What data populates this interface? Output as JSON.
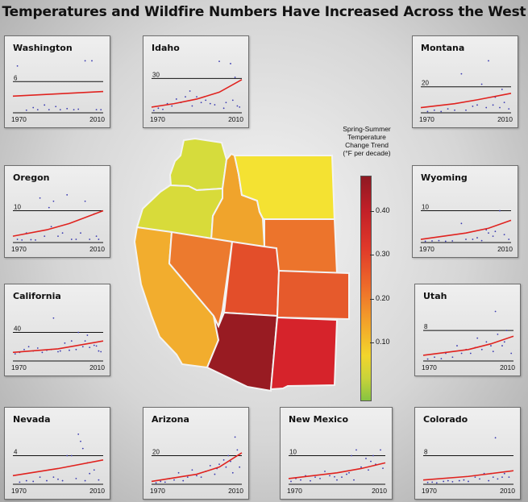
{
  "title": "Temperatures and Wildfire Numbers Have Increased Across the West",
  "legend": {
    "title_lines": [
      "Spring-Summer",
      "Temperature",
      "Change Trend",
      "(°F per decade)"
    ],
    "ticks": [
      "0.40",
      "0.30",
      "0.20",
      "0.10"
    ],
    "tick_values": [
      0.4,
      0.3,
      0.2,
      0.1
    ],
    "range": [
      -0.03,
      0.48
    ]
  },
  "map_colors": {
    "washington": "#d6dc3c",
    "oregon": "#d8db3a",
    "idaho": "#f0a42c",
    "montana": "#f4e232",
    "wyoming": "#ec742c",
    "california": "#f2ad2e",
    "nevada": "#ec7a2e",
    "utah": "#e34e2a",
    "colorado": "#e65a2c",
    "arizona": "#981b22",
    "new_mexico": "#d6232b"
  },
  "chart_data": [
    {
      "type": "scatter",
      "title": "Washington",
      "xlabel_ticks": [
        "1970",
        "2010"
      ],
      "ref_label": "6",
      "ref_value": 6,
      "ylim": [
        0,
        11
      ],
      "x_range": [
        1970,
        2010
      ],
      "points": [
        [
          1972,
          9
        ],
        [
          1976,
          0.5
        ],
        [
          1979,
          1
        ],
        [
          1981,
          0.6
        ],
        [
          1984,
          1.5
        ],
        [
          1986,
          0.6
        ],
        [
          1989,
          1.2
        ],
        [
          1991,
          0.6
        ],
        [
          1994,
          0.8
        ],
        [
          1997,
          0.6
        ],
        [
          1999,
          0.7
        ],
        [
          2002,
          10
        ],
        [
          2005,
          10
        ],
        [
          2007,
          0.6
        ],
        [
          2009,
          0.6
        ]
      ],
      "trend": [
        [
          1970,
          3.2
        ],
        [
          2010,
          4.1
        ]
      ]
    },
    {
      "type": "scatter",
      "title": "Idaho",
      "xlabel_ticks": [
        "1970",
        "2010"
      ],
      "ref_label": "30",
      "ref_value": 30,
      "ylim": [
        0,
        50
      ],
      "x_range": [
        1970,
        2010
      ],
      "points": [
        [
          1971,
          2
        ],
        [
          1973,
          4
        ],
        [
          1975,
          3
        ],
        [
          1977,
          8
        ],
        [
          1979,
          6
        ],
        [
          1981,
          12
        ],
        [
          1983,
          9
        ],
        [
          1985,
          14
        ],
        [
          1987,
          19
        ],
        [
          1988,
          6
        ],
        [
          1990,
          14
        ],
        [
          1992,
          9
        ],
        [
          1994,
          11
        ],
        [
          1996,
          8
        ],
        [
          1998,
          7
        ],
        [
          2000,
          45
        ],
        [
          2002,
          4
        ],
        [
          2003,
          9
        ],
        [
          2005,
          43
        ],
        [
          2006,
          11
        ],
        [
          2007,
          31
        ],
        [
          2008,
          6
        ],
        [
          2009,
          5
        ]
      ],
      "trend": [
        [
          1970,
          5
        ],
        [
          1980,
          8
        ],
        [
          1990,
          12
        ],
        [
          2000,
          18
        ],
        [
          2010,
          29
        ]
      ]
    },
    {
      "type": "scatter",
      "title": "Montana",
      "xlabel_ticks": [
        "1970",
        "2010"
      ],
      "ref_label": "20",
      "ref_value": 20,
      "ylim": [
        0,
        44
      ],
      "x_range": [
        1970,
        2010
      ],
      "points": [
        [
          1973,
          1
        ],
        [
          1976,
          2
        ],
        [
          1979,
          1
        ],
        [
          1982,
          3
        ],
        [
          1985,
          2
        ],
        [
          1988,
          30
        ],
        [
          1990,
          2
        ],
        [
          1993,
          5
        ],
        [
          1995,
          6
        ],
        [
          1997,
          22
        ],
        [
          1999,
          4
        ],
        [
          2000,
          40
        ],
        [
          2002,
          6
        ],
        [
          2003,
          12
        ],
        [
          2005,
          4
        ],
        [
          2006,
          18
        ],
        [
          2007,
          8
        ],
        [
          2009,
          3
        ]
      ],
      "trend": [
        [
          1970,
          4
        ],
        [
          1985,
          7
        ],
        [
          1995,
          10
        ],
        [
          2010,
          15
        ]
      ]
    },
    {
      "type": "scatter",
      "title": "Oregon",
      "xlabel_ticks": [
        "1970",
        "2010"
      ],
      "ref_label": "10",
      "ref_value": 10,
      "ylim": [
        0,
        18
      ],
      "x_range": [
        1970,
        2010
      ],
      "points": [
        [
          1972,
          1
        ],
        [
          1974,
          0.8
        ],
        [
          1976,
          3
        ],
        [
          1978,
          0.9
        ],
        [
          1980,
          0.8
        ],
        [
          1982,
          14
        ],
        [
          1984,
          2
        ],
        [
          1986,
          11
        ],
        [
          1987,
          5
        ],
        [
          1988,
          13
        ],
        [
          1990,
          2
        ],
        [
          1992,
          3
        ],
        [
          1994,
          15
        ],
        [
          1996,
          1
        ],
        [
          1998,
          1
        ],
        [
          2000,
          3
        ],
        [
          2002,
          13
        ],
        [
          2004,
          1
        ],
        [
          2006,
          9
        ],
        [
          2007,
          2
        ],
        [
          2008,
          1
        ]
      ],
      "trend": [
        [
          1970,
          2
        ],
        [
          1985,
          4
        ],
        [
          1995,
          6
        ],
        [
          2010,
          10
        ]
      ]
    },
    {
      "type": "scatter",
      "title": "Wyoming",
      "xlabel_ticks": [
        "1970",
        "2010"
      ],
      "ref_label": "10",
      "ref_value": 10,
      "ylim": [
        0,
        18
      ],
      "x_range": [
        1970,
        2010
      ],
      "points": [
        [
          1972,
          0.4
        ],
        [
          1975,
          0.5
        ],
        [
          1978,
          0.6
        ],
        [
          1981,
          0.4
        ],
        [
          1984,
          0.5
        ],
        [
          1988,
          6
        ],
        [
          1990,
          1
        ],
        [
          1993,
          1
        ],
        [
          1995,
          1.5
        ],
        [
          1997,
          0.6
        ],
        [
          1999,
          4
        ],
        [
          2000,
          3
        ],
        [
          2002,
          2
        ],
        [
          2003,
          3.5
        ],
        [
          2005,
          10
        ],
        [
          2007,
          2.5
        ],
        [
          2009,
          1
        ]
      ],
      "trend": [
        [
          1970,
          1
        ],
        [
          1990,
          3
        ],
        [
          2000,
          4.5
        ],
        [
          2010,
          7
        ]
      ]
    },
    {
      "type": "scatter",
      "title": "California",
      "xlabel_ticks": [
        "1970",
        "2010"
      ],
      "ref_label": "40",
      "ref_value": 40,
      "ylim": [
        0,
        80
      ],
      "x_range": [
        1970,
        2010
      ],
      "points": [
        [
          1971,
          10
        ],
        [
          1973,
          12
        ],
        [
          1975,
          16
        ],
        [
          1977,
          20
        ],
        [
          1979,
          14
        ],
        [
          1981,
          18
        ],
        [
          1983,
          12
        ],
        [
          1985,
          15
        ],
        [
          1987,
          16
        ],
        [
          1988,
          60
        ],
        [
          1990,
          13
        ],
        [
          1991,
          14
        ],
        [
          1993,
          25
        ],
        [
          1995,
          15
        ],
        [
          1996,
          28
        ],
        [
          1998,
          16
        ],
        [
          1999,
          40
        ],
        [
          2001,
          20
        ],
        [
          2002,
          28
        ],
        [
          2003,
          36
        ],
        [
          2004,
          19
        ],
        [
          2006,
          22
        ],
        [
          2007,
          21
        ],
        [
          2008,
          14
        ],
        [
          2009,
          13
        ]
      ],
      "trend": [
        [
          1970,
          12
        ],
        [
          1990,
          17
        ],
        [
          2010,
          28
        ]
      ]
    },
    {
      "type": "scatter",
      "title": "Utah",
      "xlabel_ticks": [
        "1970",
        "2010"
      ],
      "ref_label": "8",
      "ref_value": 8,
      "ylim": [
        0,
        15
      ],
      "x_range": [
        1970,
        2010
      ],
      "points": [
        [
          1972,
          0.5
        ],
        [
          1975,
          1
        ],
        [
          1978,
          0.6
        ],
        [
          1980,
          2
        ],
        [
          1983,
          1
        ],
        [
          1985,
          4
        ],
        [
          1987,
          2
        ],
        [
          1989,
          3
        ],
        [
          1991,
          2
        ],
        [
          1993,
          3.5
        ],
        [
          1994,
          6
        ],
        [
          1996,
          3
        ],
        [
          1998,
          5
        ],
        [
          2000,
          4
        ],
        [
          2001,
          2.5
        ],
        [
          2002,
          13
        ],
        [
          2003,
          7
        ],
        [
          2005,
          4
        ],
        [
          2006,
          5
        ],
        [
          2007,
          8
        ],
        [
          2009,
          2
        ]
      ],
      "trend": [
        [
          1970,
          1.5
        ],
        [
          1990,
          3
        ],
        [
          2000,
          4.5
        ],
        [
          2010,
          6.5
        ]
      ]
    },
    {
      "type": "scatter",
      "title": "Nevada",
      "xlabel_ticks": [
        "1970",
        "2010"
      ],
      "ref_label": "4",
      "ref_value": 4,
      "ylim": [
        0,
        8
      ],
      "x_range": [
        1970,
        2010
      ],
      "points": [
        [
          1973,
          0.3
        ],
        [
          1976,
          0.5
        ],
        [
          1979,
          0.4
        ],
        [
          1982,
          1
        ],
        [
          1985,
          0.5
        ],
        [
          1986,
          2
        ],
        [
          1988,
          1
        ],
        [
          1990,
          0.7
        ],
        [
          1992,
          0.5
        ],
        [
          1994,
          4
        ],
        [
          1996,
          4
        ],
        [
          1998,
          0.8
        ],
        [
          1999,
          7
        ],
        [
          2000,
          6
        ],
        [
          2001,
          5
        ],
        [
          2002,
          0.5
        ],
        [
          2003,
          3
        ],
        [
          2004,
          1.5
        ],
        [
          2006,
          2
        ],
        [
          2008,
          0.6
        ]
      ],
      "trend": [
        [
          1970,
          1.2
        ],
        [
          1990,
          2.2
        ],
        [
          2010,
          3.4
        ]
      ]
    },
    {
      "type": "scatter",
      "title": "Arizona",
      "xlabel_ticks": [
        "1970",
        "2010"
      ],
      "ref_label": "20",
      "ref_value": 20,
      "ylim": [
        0,
        40
      ],
      "x_range": [
        1970,
        2010
      ],
      "points": [
        [
          1972,
          1
        ],
        [
          1974,
          2
        ],
        [
          1976,
          1.5
        ],
        [
          1978,
          4
        ],
        [
          1980,
          3
        ],
        [
          1982,
          8
        ],
        [
          1984,
          2.5
        ],
        [
          1986,
          5
        ],
        [
          1988,
          10
        ],
        [
          1990,
          6
        ],
        [
          1992,
          5
        ],
        [
          1994,
          9
        ],
        [
          1996,
          13
        ],
        [
          1998,
          7
        ],
        [
          1999,
          11
        ],
        [
          2000,
          14
        ],
        [
          2002,
          17
        ],
        [
          2003,
          12
        ],
        [
          2004,
          20
        ],
        [
          2005,
          16
        ],
        [
          2006,
          8
        ],
        [
          2007,
          33
        ],
        [
          2008,
          24
        ],
        [
          2009,
          12
        ]
      ],
      "trend": [
        [
          1970,
          2
        ],
        [
          1990,
          7
        ],
        [
          2000,
          12
        ],
        [
          2010,
          22
        ]
      ]
    },
    {
      "type": "scatter",
      "title": "New Mexico",
      "xlabel_ticks": [
        "1970",
        "2010"
      ],
      "ref_label": "10",
      "ref_value": 10,
      "ylim": [
        0,
        20
      ],
      "x_range": [
        1970,
        2010
      ],
      "points": [
        [
          1971,
          1
        ],
        [
          1973,
          2
        ],
        [
          1975,
          1.5
        ],
        [
          1977,
          3
        ],
        [
          1979,
          1.2
        ],
        [
          1981,
          2.5
        ],
        [
          1983,
          2
        ],
        [
          1985,
          4.5
        ],
        [
          1987,
          3
        ],
        [
          1989,
          2.6
        ],
        [
          1990,
          1.5
        ],
        [
          1992,
          2.5
        ],
        [
          1994,
          3.5
        ],
        [
          1995,
          4
        ],
        [
          1996,
          10
        ],
        [
          1997,
          1.5
        ],
        [
          1998,
          12
        ],
        [
          2000,
          6
        ],
        [
          2002,
          9
        ],
        [
          2003,
          5
        ],
        [
          2004,
          8
        ],
        [
          2005,
          10
        ],
        [
          2006,
          7
        ],
        [
          2008,
          12
        ],
        [
          2009,
          5.6
        ]
      ],
      "trend": [
        [
          1970,
          2
        ],
        [
          1990,
          4
        ],
        [
          2000,
          5.5
        ],
        [
          2010,
          7.5
        ]
      ]
    },
    {
      "type": "scatter",
      "title": "Colorado",
      "xlabel_ticks": [
        "1970",
        "2010"
      ],
      "ref_label": "8",
      "ref_value": 8,
      "ylim": [
        0,
        16
      ],
      "x_range": [
        1970,
        2010
      ],
      "points": [
        [
          1972,
          0.5
        ],
        [
          1974,
          0.6
        ],
        [
          1976,
          0.4
        ],
        [
          1979,
          0.8
        ],
        [
          1981,
          1
        ],
        [
          1983,
          0.7
        ],
        [
          1986,
          1
        ],
        [
          1988,
          1.2
        ],
        [
          1990,
          0.8
        ],
        [
          1993,
          2
        ],
        [
          1995,
          1.5
        ],
        [
          1997,
          3
        ],
        [
          1999,
          1
        ],
        [
          2000,
          3
        ],
        [
          2001,
          2
        ],
        [
          2002,
          13
        ],
        [
          2003,
          1.5
        ],
        [
          2005,
          2
        ],
        [
          2006,
          3
        ],
        [
          2008,
          2
        ]
      ],
      "trend": [
        [
          1970,
          1.2
        ],
        [
          1990,
          2.2
        ],
        [
          2010,
          3.8
        ]
      ]
    }
  ]
}
